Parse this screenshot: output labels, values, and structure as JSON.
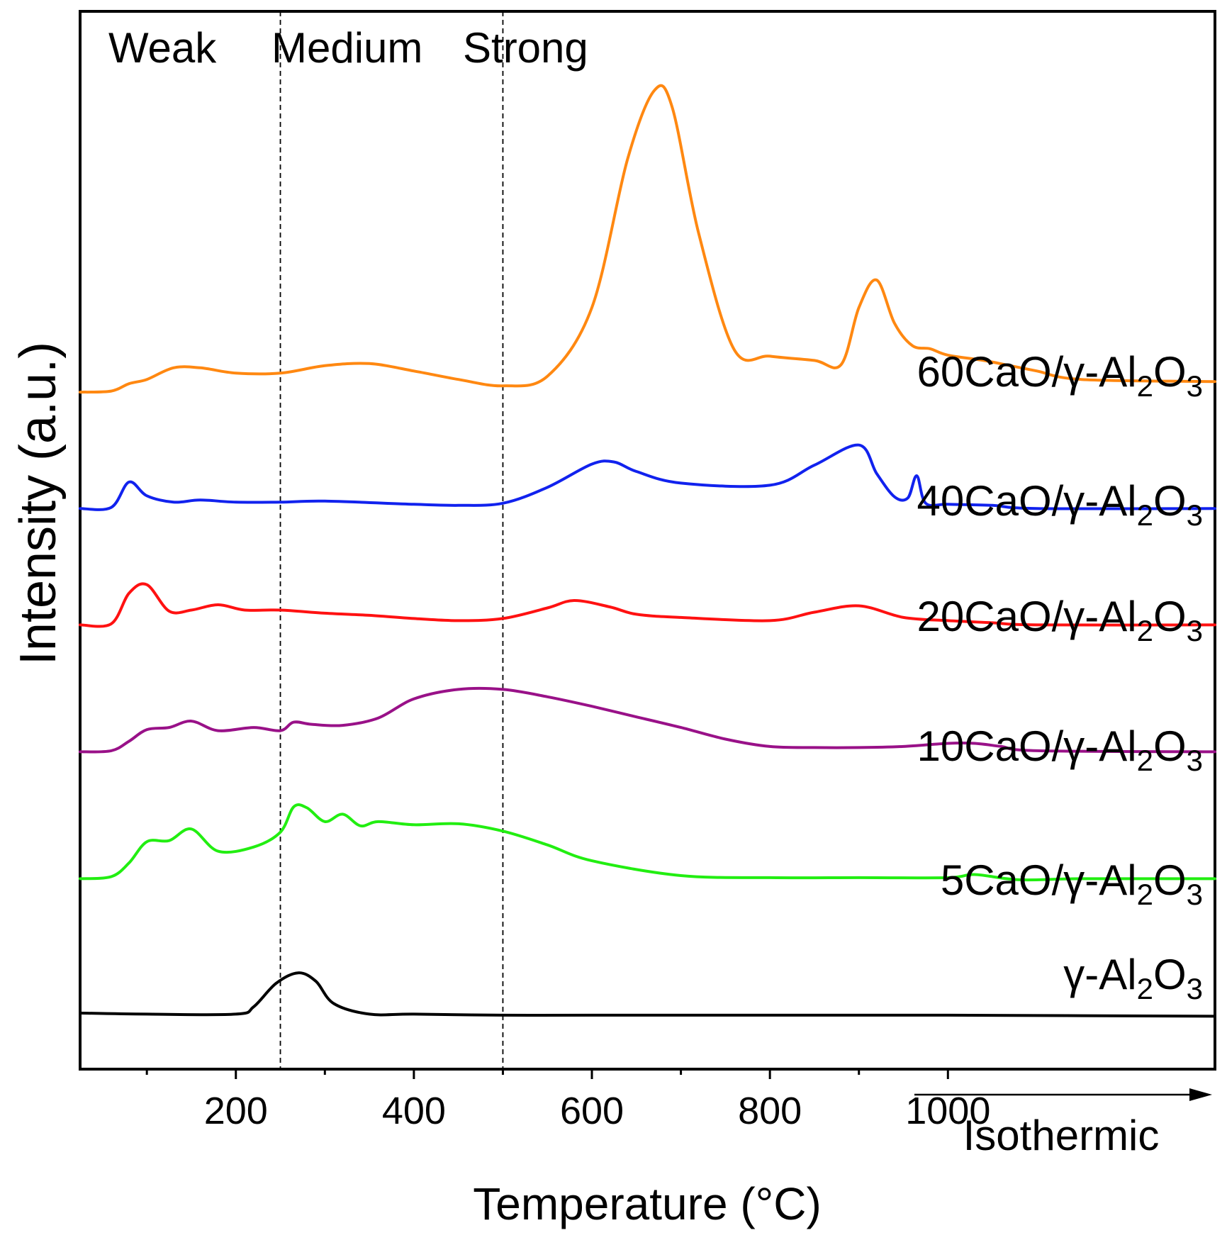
{
  "chart_data": {
    "type": "line",
    "title": "",
    "xlabel": "Temperature (°C)",
    "ylabel": "Intensity (a.u.)",
    "xlim": [
      25,
      1300
    ],
    "ylim": [
      0,
      100
    ],
    "x_ticks": [
      200,
      400,
      600,
      800,
      1000
    ],
    "x_tick_labels": [
      "200",
      "400",
      "600",
      "800",
      "1000"
    ],
    "minor_ticks": [
      100,
      300,
      500,
      700,
      900
    ],
    "isothermic_label": "Isothermic",
    "isothermic_range": [
      1100,
      1300
    ],
    "regions": [
      {
        "label": "Weak",
        "from": 25,
        "to": 250
      },
      {
        "label": "Medium",
        "from": 250,
        "to": 500
      },
      {
        "label": "Strong",
        "from": 500,
        "to": 1300
      }
    ],
    "dividers": [
      250,
      500
    ],
    "series": [
      {
        "name": "γ-Al2O3",
        "label_main": "γ-Al",
        "label_sub1": "2",
        "label_mid": "O",
        "label_sub2": "3",
        "color": "#000000",
        "x": [
          25,
          100,
          200,
          220,
          245,
          270,
          290,
          310,
          350,
          400,
          500,
          600,
          800,
          1000,
          1300
        ],
        "values": [
          5.3,
          5.2,
          5.2,
          5.9,
          8.1,
          9.1,
          8.3,
          6.2,
          5.2,
          5.2,
          5.1,
          5.1,
          5.1,
          5.1,
          5.0
        ]
      },
      {
        "name": "5CaO/γ-Al2O3",
        "label_main": "5CaO/γ-Al",
        "label_sub1": "2",
        "label_mid": "O",
        "label_sub2": "3",
        "color": "#22ee11",
        "x": [
          25,
          60,
          80,
          100,
          125,
          150,
          180,
          220,
          250,
          265,
          280,
          300,
          320,
          340,
          360,
          400,
          450,
          500,
          550,
          600,
          700,
          800,
          900,
          1000,
          1030,
          1080,
          1150,
          1300
        ],
        "values": [
          18.0,
          18.2,
          19.5,
          21.5,
          21.6,
          22.7,
          20.6,
          21.0,
          22.4,
          24.8,
          24.7,
          23.4,
          24.1,
          23.0,
          23.4,
          23.1,
          23.2,
          22.5,
          21.2,
          19.7,
          18.3,
          18.1,
          18.1,
          18.1,
          18.4,
          17.9,
          18.0,
          18.0
        ]
      },
      {
        "name": "10CaO/γ-Al2O3",
        "label_main": "10CaO/γ-Al",
        "label_sub1": "2",
        "label_mid": "O",
        "label_sub2": "3",
        "color": "#991188",
        "x": [
          25,
          60,
          80,
          100,
          125,
          150,
          180,
          220,
          250,
          265,
          285,
          320,
          360,
          400,
          450,
          500,
          550,
          600,
          650,
          700,
          750,
          800,
          850,
          900,
          950,
          1000,
          1030,
          1060,
          1100,
          1300
        ],
        "values": [
          30.0,
          30.1,
          31.0,
          32.1,
          32.3,
          32.9,
          32.0,
          32.3,
          32.0,
          32.8,
          32.6,
          32.5,
          33.2,
          35.0,
          35.9,
          35.9,
          35.2,
          34.3,
          33.3,
          32.3,
          31.2,
          30.5,
          30.4,
          30.4,
          30.5,
          30.8,
          30.8,
          30.5,
          30.1,
          30.0
        ]
      },
      {
        "name": "20CaO/γ-Al2O3",
        "label_main": "20CaO/γ-Al",
        "label_sub1": "2",
        "label_mid": "O",
        "label_sub2": "3",
        "color": "#ff1111",
        "x": [
          25,
          60,
          80,
          100,
          125,
          150,
          180,
          210,
          250,
          300,
          350,
          400,
          450,
          500,
          550,
          580,
          620,
          650,
          700,
          800,
          850,
          900,
          950,
          1000,
          1050,
          1100,
          1300
        ],
        "values": [
          42.0,
          42.1,
          45.0,
          45.8,
          43.3,
          43.4,
          43.9,
          43.4,
          43.4,
          43.1,
          42.9,
          42.6,
          42.4,
          42.6,
          43.6,
          44.3,
          43.7,
          43.0,
          42.7,
          42.4,
          43.2,
          43.8,
          42.7,
          42.4,
          42.2,
          42.0,
          42.0
        ]
      },
      {
        "name": "40CaO/γ-Al2O3",
        "label_main": "40CaO/γ-Al",
        "label_sub1": "2",
        "label_mid": "O",
        "label_sub2": "3",
        "color": "#1122ee",
        "x": [
          25,
          60,
          80,
          100,
          130,
          160,
          200,
          250,
          300,
          400,
          450,
          500,
          550,
          600,
          625,
          650,
          700,
          800,
          850,
          900,
          920,
          940,
          955,
          965,
          975,
          1000,
          1050,
          1100,
          1300
        ],
        "values": [
          53.0,
          53.1,
          55.5,
          54.2,
          53.6,
          53.8,
          53.6,
          53.6,
          53.7,
          53.4,
          53.3,
          53.5,
          55.0,
          57.2,
          57.4,
          56.5,
          55.4,
          55.2,
          57.1,
          59.0,
          56.3,
          54.1,
          54.0,
          56.1,
          53.5,
          53.4,
          53.3,
          53.0,
          53.0
        ]
      },
      {
        "name": "60CaO/γ-Al2O3",
        "label_main": "60CaO/γ-Al",
        "label_sub1": "2",
        "label_mid": "O",
        "label_sub2": "3",
        "color": "#ff8811",
        "x": [
          25,
          60,
          80,
          100,
          130,
          160,
          200,
          250,
          300,
          350,
          400,
          450,
          500,
          550,
          600,
          640,
          670,
          690,
          720,
          760,
          800,
          850,
          880,
          900,
          920,
          940,
          960,
          980,
          1000,
          1040,
          1070,
          1100,
          1150,
          1300
        ],
        "values": [
          64.0,
          64.1,
          64.8,
          65.2,
          66.3,
          66.3,
          65.8,
          65.8,
          66.5,
          66.7,
          66.0,
          65.2,
          64.6,
          65.5,
          72.0,
          86.0,
          92.5,
          91.0,
          79.0,
          68.0,
          67.4,
          67.0,
          66.6,
          72.0,
          74.6,
          70.5,
          68.4,
          68.1,
          67.5,
          67.0,
          66.5,
          66.0,
          65.2,
          65.0
        ]
      }
    ]
  }
}
